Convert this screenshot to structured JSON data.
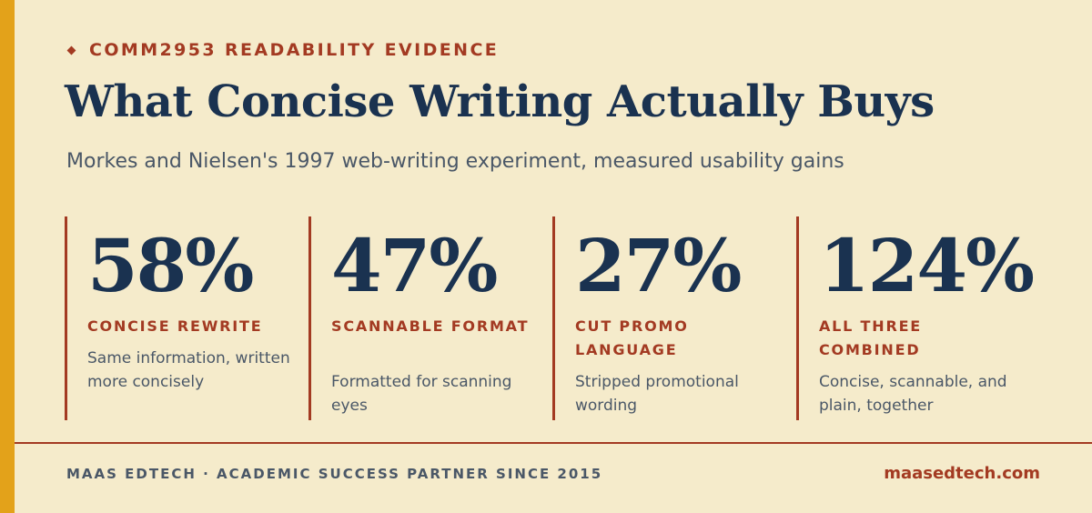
{
  "header": {
    "eyebrow": "COMM2953 READABILITY EVIDENCE",
    "title": "What Concise Writing Actually Buys",
    "subtitle": "Morkes and Nielsen's 1997 web-writing experiment, measured usability gains"
  },
  "stats": [
    {
      "value": "58%",
      "label": "CONCISE REWRITE",
      "description": "Same information, written more concisely"
    },
    {
      "value": "47%",
      "label": "SCANNABLE FORMAT",
      "description": "Formatted for scanning eyes"
    },
    {
      "value": "27%",
      "label": "CUT PROMO LANGUAGE",
      "description": "Stripped promotional wording"
    },
    {
      "value": "124%",
      "label": "ALL THREE COMBINED",
      "description": "Concise, scannable, and plain, together"
    }
  ],
  "footer": {
    "left": "MAAS EDTECH · ACADEMIC SUCCESS PARTNER SINCE 2015",
    "right": "maasedtech.com"
  },
  "colors": {
    "background": "#f5ebcb",
    "accent_bar": "#e3a21a",
    "brand_red": "#a33a22",
    "navy": "#1a3250",
    "slate": "#4a5767"
  },
  "icons": {
    "eyebrow_marker": "diamond-icon"
  }
}
